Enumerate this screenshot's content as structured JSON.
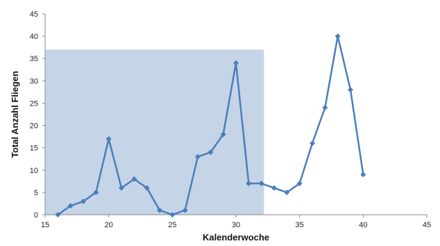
{
  "chart_data": {
    "type": "line",
    "title": "",
    "xlabel": "Kalenderwoche",
    "ylabel": "Total Anzahl Fliegen",
    "xlim": [
      15,
      45
    ],
    "ylim": [
      0,
      45
    ],
    "x_ticks": [
      15,
      20,
      25,
      30,
      35,
      40,
      45
    ],
    "y_ticks": [
      0,
      5,
      10,
      15,
      20,
      25,
      30,
      35,
      40,
      45
    ],
    "grid": false,
    "legend": "none",
    "series": [
      {
        "color": "#4A7EBB",
        "marker": "diamond",
        "x": [
          16,
          17,
          18,
          19,
          20,
          21,
          22,
          23,
          24,
          25,
          26,
          27,
          28,
          29,
          30,
          31,
          32,
          33,
          34,
          35,
          36,
          37,
          38,
          39,
          40
        ],
        "y": [
          0,
          2,
          3,
          5,
          17,
          6,
          8,
          6,
          1,
          0,
          1,
          13,
          14,
          18,
          34,
          7,
          7,
          6,
          5,
          7,
          16,
          24,
          40,
          28,
          9
        ]
      }
    ],
    "shaded_region": {
      "x_range": [
        15,
        32.2
      ],
      "y_range": [
        0,
        37
      ],
      "color": "#C6D4E8"
    }
  }
}
